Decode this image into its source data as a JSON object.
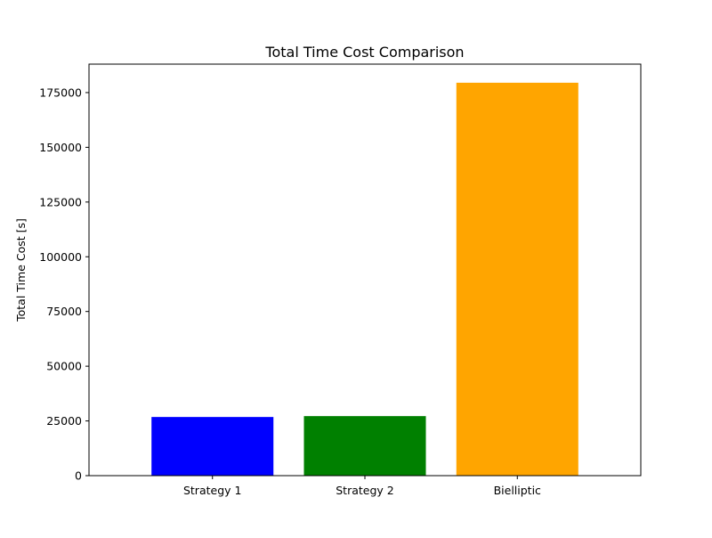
{
  "chart_data": {
    "type": "bar",
    "title": "Total Time Cost Comparison",
    "xlabel": "",
    "ylabel": "Total Time Cost [s]",
    "categories": [
      "Strategy 1",
      "Strategy 2",
      "Bielliptic"
    ],
    "values": [
      26800,
      27200,
      179500
    ],
    "colors": [
      "#0000ff",
      "#008000",
      "#ffa500"
    ],
    "ylim": [
      0,
      188000
    ],
    "yticks": [
      0,
      25000,
      50000,
      75000,
      100000,
      125000,
      150000,
      175000
    ],
    "grid": false,
    "legend": "none"
  }
}
